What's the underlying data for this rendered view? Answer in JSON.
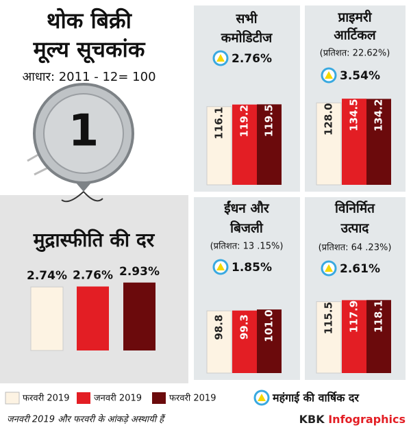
{
  "title": [
    "थोक बिक्री",
    "मूल्य सूचकांक"
  ],
  "base": "आधार: 2011 - 12= 100",
  "legend": {
    "series": [
      {
        "name": "फरवरी 2019",
        "color": "#fdf3e3"
      },
      {
        "name": "जनवरी 2019",
        "color": "#e31e24"
      },
      {
        "name": "फरवरी 2019",
        "color": "#6b0a0c"
      }
    ],
    "rate_label": "महंगाई की वार्षिक दर"
  },
  "chart_data": [
    {
      "type": "bar",
      "title": [
        "मुद्रास्फीति की दर"
      ],
      "values": [
        2.74,
        2.76,
        2.93
      ],
      "value_labels": [
        "2.74%",
        "2.76%",
        "2.93%"
      ],
      "ylim": [
        0,
        3.1
      ]
    },
    {
      "type": "bar",
      "title": [
        "सभी",
        "कमोडिटीज"
      ],
      "rate": {
        "value": 2.76,
        "label": "2.76%"
      },
      "values": [
        116.1,
        119.2,
        119.5
      ],
      "value_labels": [
        "116.1",
        "119.2",
        "119.5"
      ],
      "ylim": [
        0,
        125
      ]
    },
    {
      "type": "bar",
      "title": [
        "प्राइमरी",
        "आर्टिकल"
      ],
      "subtitle": "(प्रतिशत: 22.62%)",
      "rate": {
        "value": 3.54,
        "label": "3.54%"
      },
      "values": [
        128.0,
        134.5,
        134.2
      ],
      "value_labels": [
        "128.0",
        "134.5",
        "134.2"
      ],
      "ylim": [
        0,
        140
      ]
    },
    {
      "type": "bar",
      "title": [
        "ईंधन और",
        "बिजली"
      ],
      "subtitle": "(प्रतिशत: 13 .15%)",
      "rate": {
        "value": 1.85,
        "label": "1.85%"
      },
      "values": [
        98.8,
        99.3,
        101.0
      ],
      "value_labels": [
        "98.8",
        "99.3",
        "101.0"
      ],
      "ylim": [
        0,
        125
      ]
    },
    {
      "type": "bar",
      "title": [
        "विनिर्मित",
        "उत्पाद"
      ],
      "subtitle": "(प्रतिशत: 64 .23%)",
      "rate": {
        "value": 2.61,
        "label": "2.61%"
      },
      "values": [
        115.5,
        117.9,
        118.1
      ],
      "value_labels": [
        "115.5",
        "117.9",
        "118.1"
      ],
      "ylim": [
        0,
        145
      ]
    }
  ],
  "footer": "जनवरी 2019 और फरवरी के आंकड़े अस्थायी हैं",
  "brand": [
    "KBK",
    "Infographics"
  ]
}
